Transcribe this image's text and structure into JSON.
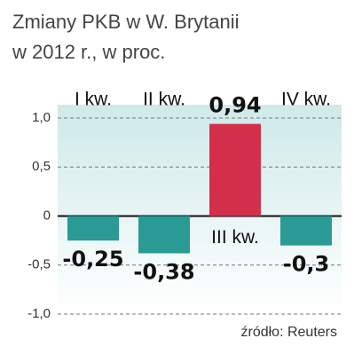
{
  "chart_data": {
    "type": "bar",
    "title": "Zmiany PKB w W. Brytanii",
    "subtitle": "w 2012 r., w proc.",
    "source": "źródło: Reuters",
    "categories": [
      "I kw.",
      "II kw.",
      "III kw.",
      "IV kw."
    ],
    "values": [
      -0.25,
      -0.38,
      0.94,
      -0.3
    ],
    "value_labels": [
      "-0,25",
      "-0,38",
      "0,94",
      "-0,3"
    ],
    "colors": [
      "#2a9a95",
      "#2a9a95",
      "#d42f4a",
      "#2a9a95"
    ],
    "ylim": [
      -1,
      1
    ],
    "yticks": [
      {
        "value": 1,
        "label": "1,0"
      },
      {
        "value": 0.5,
        "label": "0,5"
      },
      0,
      {
        "value": -0.5,
        "label": "-0,5"
      },
      {
        "value": -1,
        "label": "-1,0"
      }
    ],
    "grid": true
  }
}
